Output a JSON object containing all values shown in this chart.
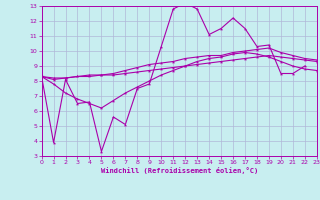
{
  "title": "",
  "xlabel": "Windchill (Refroidissement éolien,°C)",
  "bg_color": "#c8eef0",
  "grid_color": "#b0b8d8",
  "line_color": "#aa00aa",
  "xlim": [
    0,
    23
  ],
  "ylim": [
    3,
    13
  ],
  "xticks": [
    0,
    1,
    2,
    3,
    4,
    5,
    6,
    7,
    8,
    9,
    10,
    11,
    12,
    13,
    14,
    15,
    16,
    17,
    18,
    19,
    20,
    21,
    22,
    23
  ],
  "yticks": [
    3,
    4,
    5,
    6,
    7,
    8,
    9,
    10,
    11,
    12,
    13
  ],
  "line1_x": [
    0,
    1,
    2,
    3,
    4,
    5,
    6,
    7,
    8,
    9,
    10,
    11,
    12,
    13,
    14,
    15,
    16,
    17,
    18,
    19,
    20,
    21,
    22
  ],
  "line1_y": [
    8.3,
    3.9,
    8.1,
    6.5,
    6.6,
    3.3,
    5.6,
    5.1,
    7.5,
    7.8,
    10.3,
    12.8,
    13.2,
    12.8,
    11.1,
    11.5,
    12.2,
    11.5,
    10.3,
    10.4,
    8.5,
    8.5,
    9.0
  ],
  "line2_x": [
    0,
    1,
    2,
    3,
    4,
    5,
    6,
    7,
    8,
    9,
    10,
    11,
    12,
    13,
    14,
    15,
    16,
    17,
    18,
    19,
    20,
    21,
    22,
    23
  ],
  "line2_y": [
    8.3,
    8.2,
    8.2,
    8.3,
    8.3,
    8.4,
    8.4,
    8.5,
    8.6,
    8.7,
    8.8,
    8.9,
    9.0,
    9.1,
    9.2,
    9.3,
    9.4,
    9.5,
    9.6,
    9.7,
    9.6,
    9.5,
    9.4,
    9.3
  ],
  "line3_x": [
    0,
    1,
    2,
    3,
    4,
    5,
    6,
    7,
    8,
    9,
    10,
    11,
    12,
    13,
    14,
    15,
    16,
    17,
    18,
    19,
    20,
    21,
    22,
    23
  ],
  "line3_y": [
    8.3,
    8.1,
    8.2,
    8.3,
    8.4,
    8.4,
    8.5,
    8.7,
    8.9,
    9.1,
    9.2,
    9.3,
    9.5,
    9.6,
    9.7,
    9.7,
    9.9,
    10.0,
    10.1,
    10.2,
    9.9,
    9.7,
    9.5,
    9.4
  ],
  "line4_x": [
    0,
    1,
    2,
    3,
    4,
    5,
    6,
    7,
    8,
    9,
    10,
    11,
    12,
    13,
    14,
    15,
    16,
    17,
    18,
    19,
    20,
    21,
    22,
    23
  ],
  "line4_y": [
    8.3,
    7.8,
    7.2,
    6.8,
    6.5,
    6.2,
    6.7,
    7.2,
    7.6,
    8.0,
    8.4,
    8.7,
    9.0,
    9.3,
    9.5,
    9.6,
    9.8,
    9.9,
    9.8,
    9.6,
    9.3,
    9.0,
    8.8,
    8.7
  ]
}
